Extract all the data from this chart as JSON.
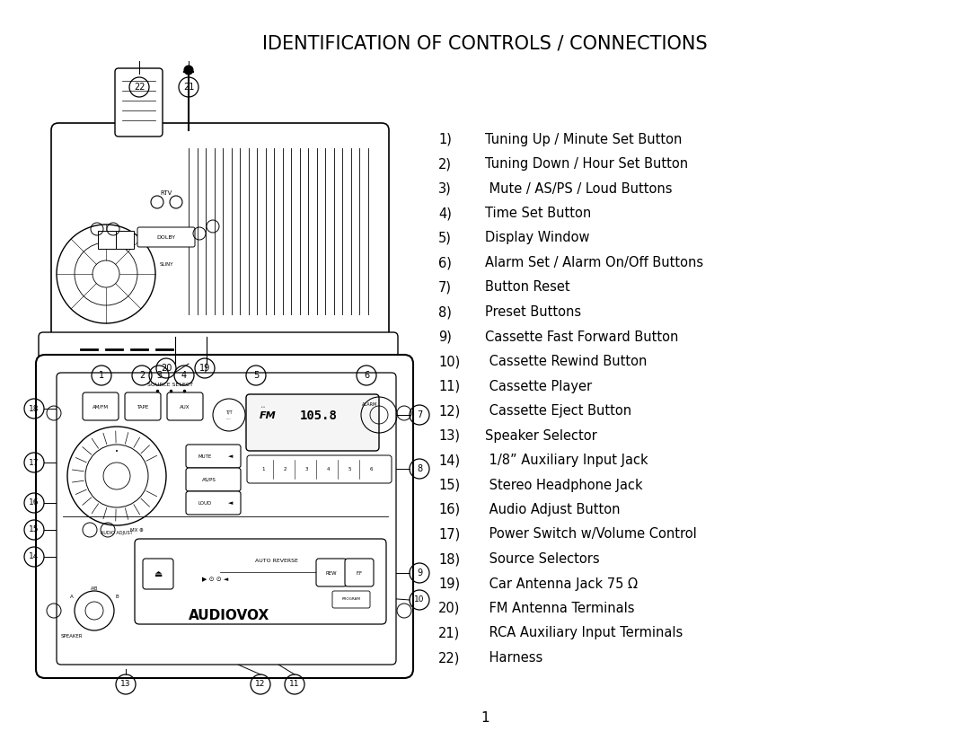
{
  "title": "IDENTIFICATION OF CONTROLS / CONNECTIONS",
  "title_fontsize": 15,
  "title_weight": "normal",
  "bg_color": "#ffffff",
  "text_color": "#000000",
  "items_num": [
    "1)",
    "2)",
    "3)",
    "4)",
    "5)",
    "6)",
    "7)",
    "8)",
    "9)",
    "10)",
    "11)",
    "12)",
    "13)",
    "14)",
    "15)",
    "16)",
    "17)",
    "18)",
    "19)",
    "20)",
    "21)",
    "22)"
  ],
  "items_desc": [
    "Tuning Up / Minute Set Button",
    "Tuning Down / Hour Set Button",
    " Mute / AS/PS / Loud Buttons",
    "Time Set Button",
    "Display Window",
    "Alarm Set / Alarm On/Off Buttons",
    "Button Reset",
    "Preset Buttons",
    "Cassette Fast Forward Button",
    " Cassette Rewind Button",
    " Cassette Player",
    " Cassette Eject Button",
    "Speaker Selector",
    " 1/8” Auxiliary Input Jack",
    " Stereo Headphone Jack",
    " Audio Adjust Button",
    " Power Switch w/Volume Control",
    " Source Selectors",
    " Car Antenna Jack 75 Ω",
    " FM Antenna Terminals",
    " RCA Auxiliary Input Terminals",
    " Harness"
  ],
  "page_number": "1",
  "line_color": "#000000"
}
